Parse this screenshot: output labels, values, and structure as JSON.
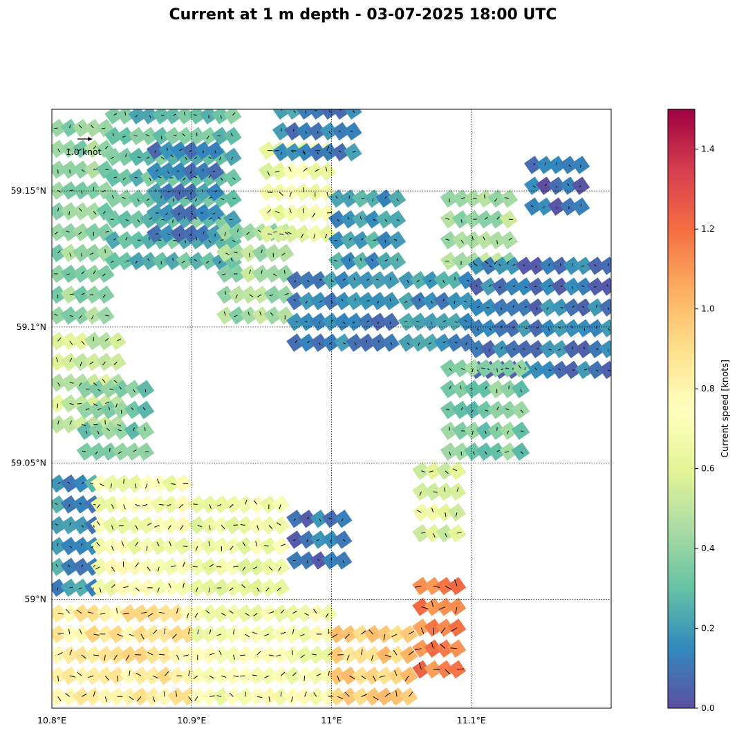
{
  "chart_data": {
    "type": "heatmap",
    "title": "Current at 1 m depth - 03-07-2025 18:00 UTC",
    "x_axis": {
      "range": [
        10.8,
        11.2
      ],
      "ticks": [
        10.8,
        10.9,
        11.0,
        11.1
      ],
      "tick_labels": [
        "10.8°E",
        "10.9°E",
        "11°E",
        "11.1°E"
      ]
    },
    "y_axis": {
      "range": [
        58.96,
        59.18
      ],
      "ticks": [
        59.0,
        59.05,
        59.1,
        59.15
      ],
      "tick_labels": [
        "59°N",
        "59.05°N",
        "59.1°N",
        "59.15°N"
      ]
    },
    "grid": "dotted",
    "quiver_key": {
      "label": "1.0 knot",
      "value": 1.0
    },
    "colorbar": {
      "label": "Current speed [knots]",
      "range": [
        0.0,
        1.5
      ],
      "ticks": [
        0.0,
        0.2,
        0.4,
        0.6,
        0.8,
        1.0,
        1.2,
        1.4
      ],
      "tick_labels": [
        "0.0",
        "0.2",
        "0.4",
        "0.6",
        "0.8",
        "1.0",
        "1.2",
        "1.4"
      ],
      "colormap": [
        "#5e4fa2",
        "#3288bd",
        "#66c2a5",
        "#abdda4",
        "#e6f598",
        "#ffffbf",
        "#fee08b",
        "#fdae61",
        "#f46d43",
        "#d53e4f",
        "#9e0142"
      ]
    },
    "regions": [
      {
        "lon": [
          10.8,
          10.84
        ],
        "lat": [
          59.1,
          59.18
        ],
        "speed": 0.4
      },
      {
        "lon": [
          10.8,
          10.85
        ],
        "lat": [
          59.06,
          59.1
        ],
        "speed": 0.55
      },
      {
        "lon": [
          10.84,
          10.93
        ],
        "lat": [
          59.12,
          59.18
        ],
        "speed": 0.3
      },
      {
        "lon": [
          10.87,
          10.92
        ],
        "lat": [
          59.13,
          59.17
        ],
        "speed": 0.15
      },
      {
        "lon": [
          10.92,
          10.97
        ],
        "lat": [
          59.1,
          59.14
        ],
        "speed": 0.45
      },
      {
        "lon": [
          10.95,
          11.0
        ],
        "lat": [
          59.13,
          59.17
        ],
        "speed": 0.65
      },
      {
        "lon": [
          10.96,
          11.02
        ],
        "lat": [
          59.16,
          59.18
        ],
        "speed": 0.15
      },
      {
        "lon": [
          11.0,
          11.05
        ],
        "lat": [
          59.12,
          59.15
        ],
        "speed": 0.2
      },
      {
        "lon": [
          10.97,
          11.05
        ],
        "lat": [
          59.09,
          59.12
        ],
        "speed": 0.15
      },
      {
        "lon": [
          11.05,
          11.1
        ],
        "lat": [
          59.09,
          59.12
        ],
        "speed": 0.18
      },
      {
        "lon": [
          11.08,
          11.13
        ],
        "lat": [
          59.12,
          59.15
        ],
        "speed": 0.45
      },
      {
        "lon": [
          11.1,
          11.2
        ],
        "lat": [
          59.08,
          59.13
        ],
        "speed": 0.12
      },
      {
        "lon": [
          11.14,
          11.18
        ],
        "lat": [
          59.14,
          59.16
        ],
        "speed": 0.08
      },
      {
        "lon": [
          11.08,
          11.14
        ],
        "lat": [
          59.05,
          59.09
        ],
        "speed": 0.35
      },
      {
        "lon": [
          10.82,
          10.87
        ],
        "lat": [
          59.05,
          59.08
        ],
        "speed": 0.35
      },
      {
        "lon": [
          10.8,
          10.83
        ],
        "lat": [
          59.0,
          59.05
        ],
        "speed": 0.18
      },
      {
        "lon": [
          10.83,
          10.9
        ],
        "lat": [
          59.0,
          59.05
        ],
        "speed": 0.7
      },
      {
        "lon": [
          10.9,
          10.97
        ],
        "lat": [
          59.0,
          59.04
        ],
        "speed": 0.65
      },
      {
        "lon": [
          10.97,
          11.01
        ],
        "lat": [
          59.01,
          59.03
        ],
        "speed": 0.1
      },
      {
        "lon": [
          10.8,
          10.9
        ],
        "lat": [
          58.96,
          59.0
        ],
        "speed": 0.85
      },
      {
        "lon": [
          10.9,
          11.0
        ],
        "lat": [
          58.96,
          59.0
        ],
        "speed": 0.7
      },
      {
        "lon": [
          11.0,
          11.06
        ],
        "lat": [
          58.96,
          58.99
        ],
        "speed": 0.95
      },
      {
        "lon": [
          11.06,
          11.09
        ],
        "lat": [
          58.97,
          59.01
        ],
        "speed": 1.15
      },
      {
        "lon": [
          11.06,
          11.09
        ],
        "lat": [
          59.02,
          59.05
        ],
        "speed": 0.6
      }
    ]
  }
}
